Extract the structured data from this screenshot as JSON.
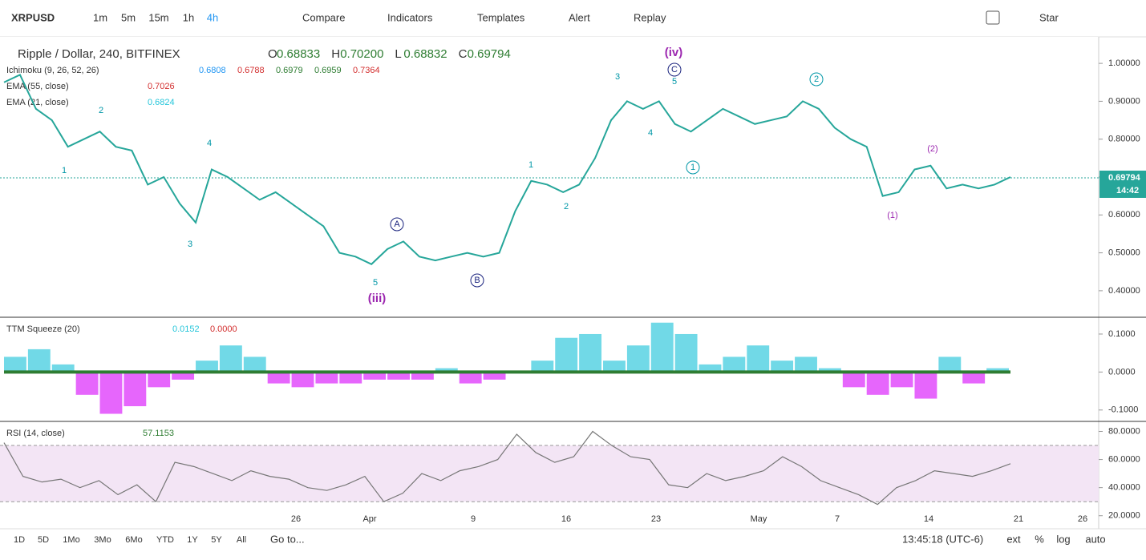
{
  "toolbar": {
    "symbol": "XRPUSD",
    "intervals": [
      "1m",
      "5m",
      "15m",
      "1h",
      "4h"
    ],
    "buttons": [
      "Compare",
      "Indicators",
      "Templates",
      "Alert",
      "Replay"
    ],
    "star": "Star"
  },
  "legend": {
    "title": "Ripple / Dollar, 240, BITFINEX",
    "ohlc": [
      "O",
      "0.68833",
      "H",
      "0.70200",
      "L",
      "0.68832",
      "C",
      "0.69794"
    ],
    "ichimoku": {
      "name": "Ichimoku (9, 26, 52, 26)",
      "values": [
        "0.6808",
        "0.6788",
        "0.6979",
        "0.6959",
        "0.7364"
      ]
    },
    "ema55": {
      "name": "EMA (55, close)",
      "value": "0.7026"
    },
    "ema21": {
      "name": "EMA (21, close)",
      "value": "0.6824"
    }
  },
  "price": {
    "values": [
      0.95,
      0.97,
      0.88,
      0.85,
      0.78,
      0.8,
      0.82,
      0.78,
      0.77,
      0.68,
      0.7,
      0.63,
      0.58,
      0.72,
      0.7,
      0.67,
      0.64,
      0.66,
      0.63,
      0.6,
      0.57,
      0.5,
      0.49,
      0.47,
      0.51,
      0.53,
      0.49,
      0.48,
      0.49,
      0.5,
      0.49,
      0.5,
      0.61,
      0.69,
      0.68,
      0.66,
      0.68,
      0.75,
      0.85,
      0.9,
      0.88,
      0.9,
      0.84,
      0.82,
      0.85,
      0.88,
      0.86,
      0.84,
      0.85,
      0.86,
      0.9,
      0.88,
      0.83,
      0.8,
      0.78,
      0.65,
      0.66,
      0.72,
      0.73,
      0.67,
      0.68,
      0.67,
      0.68,
      0.7
    ],
    "color": "#26a69a",
    "ylim": [
      0.33,
      1.07
    ],
    "yticks": [
      {
        "value": 1,
        "label": "1.00000"
      },
      {
        "value": 0.9,
        "label": "0.90000"
      },
      {
        "value": 0.8,
        "label": "0.80000"
      },
      {
        "value": 0.7,
        "label": "0.70000"
      },
      {
        "value": 0.6,
        "label": "0.60000"
      },
      {
        "value": 0.5,
        "label": "0.50000"
      },
      {
        "value": 0.4,
        "label": "0.40000"
      }
    ],
    "last": {
      "value": 0.69794,
      "label": "0.69794",
      "time": "14:42"
    }
  },
  "annotations": [
    "(iv)",
    "(iii)",
    "1",
    "2",
    "3",
    "4",
    "5",
    "1",
    "2",
    "3",
    "4",
    "5",
    "A",
    "B",
    "C",
    "1",
    "2",
    "(1)",
    "(2)"
  ],
  "squeeze": {
    "name": "TTM Squeeze (20)",
    "readings": [
      "0.0152",
      "0.0000"
    ],
    "values": [
      0.04,
      0.06,
      0.02,
      -0.06,
      -0.11,
      -0.09,
      -0.04,
      -0.02,
      0.03,
      0.07,
      0.04,
      -0.03,
      -0.04,
      -0.03,
      -0.03,
      -0.02,
      -0.02,
      -0.02,
      0.01,
      -0.03,
      -0.02,
      0.0,
      0.03,
      0.09,
      0.1,
      0.03,
      0.07,
      0.13,
      0.1,
      0.02,
      0.04,
      0.07,
      0.03,
      0.04,
      0.01,
      -0.04,
      -0.06,
      -0.04,
      -0.07,
      0.04,
      -0.03,
      0.01
    ],
    "ylim": [
      -0.13,
      0.14
    ],
    "yticks": [
      {
        "value": 0.1,
        "label": "0.1000"
      },
      {
        "value": 0,
        "label": "0.0000"
      },
      {
        "value": -0.1,
        "label": "-0.1000"
      }
    ]
  },
  "rsi": {
    "name": "RSI (14, close)",
    "reading": "57.1153",
    "values": [
      72,
      48,
      44,
      46,
      40,
      45,
      35,
      42,
      30,
      58,
      55,
      50,
      45,
      52,
      48,
      46,
      40,
      38,
      42,
      48,
      30,
      36,
      50,
      45,
      52,
      55,
      60,
      78,
      65,
      58,
      62,
      80,
      70,
      62,
      60,
      42,
      40,
      50,
      45,
      48,
      52,
      62,
      55,
      45,
      40,
      35,
      28,
      40,
      45,
      52,
      50,
      48,
      52,
      57
    ],
    "ylim": [
      13,
      86
    ],
    "yticks": [
      {
        "value": 80,
        "label": "80.0000"
      },
      {
        "value": 60,
        "label": "60.0000"
      },
      {
        "value": 40,
        "label": "40.0000"
      },
      {
        "value": 20,
        "label": "20.0000"
      }
    ],
    "band": [
      30,
      70
    ]
  },
  "xaxis": [
    "26",
    "Apr",
    "9",
    "16",
    "23",
    "May",
    "7",
    "14",
    "21",
    "26"
  ],
  "bottom": {
    "ranges": [
      "1D",
      "5D",
      "1Mo",
      "3Mo",
      "6Mo",
      "YTD",
      "1Y",
      "5Y",
      "All"
    ],
    "goto": "Go to...",
    "clock": "13:45:18 (UTC-6)",
    "options": [
      "ext",
      "%",
      "log",
      "auto"
    ]
  }
}
